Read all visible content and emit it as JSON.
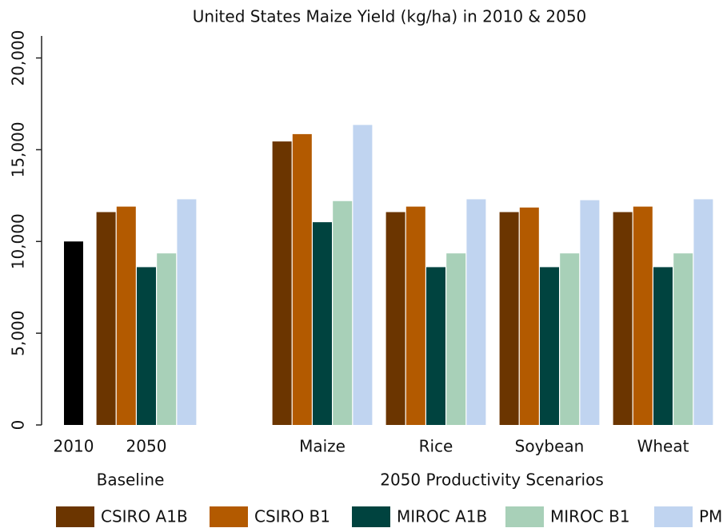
{
  "chart_data": {
    "type": "bar",
    "title": "United States Maize Yield (kg/ha) in 2010 & 2050",
    "categories": [
      "2010",
      "2050",
      "Maize",
      "Rice",
      "Soybean",
      "Wheat"
    ],
    "group_labels": [
      "Baseline",
      "2050 Productivity Scenarios"
    ],
    "series": [
      {
        "color": "#000000",
        "values": [
          10000,
          null,
          null,
          null,
          null,
          null
        ]
      },
      {
        "name": "CSIRO A1B",
        "color": "#6b3500",
        "values": [
          null,
          11600,
          15450,
          11600,
          11600,
          11600
        ]
      },
      {
        "name": "CSIRO B1",
        "color": "#b35a00",
        "values": [
          null,
          11900,
          15850,
          11900,
          11850,
          11900
        ]
      },
      {
        "name": "MIROC A1B",
        "color": "#00433f",
        "values": [
          null,
          8600,
          11050,
          8600,
          8600,
          8600
        ]
      },
      {
        "name": "MIROC B1",
        "color": "#a8d0b8",
        "values": [
          null,
          9350,
          12200,
          9350,
          9350,
          9350
        ]
      },
      {
        "name": "PM",
        "color": "#c0d4f0",
        "values": [
          null,
          12300,
          16350,
          12300,
          12250,
          12300
        ]
      }
    ],
    "ylim": [
      0,
      21200
    ],
    "yticks": [
      0,
      {
        "value": 5000,
        "label": "5,000"
      },
      {
        "value": 10000,
        "label": "10,000"
      },
      {
        "value": 15000,
        "label": "15,000"
      },
      {
        "value": 20000,
        "label": "20,000"
      }
    ],
    "grid": false
  }
}
